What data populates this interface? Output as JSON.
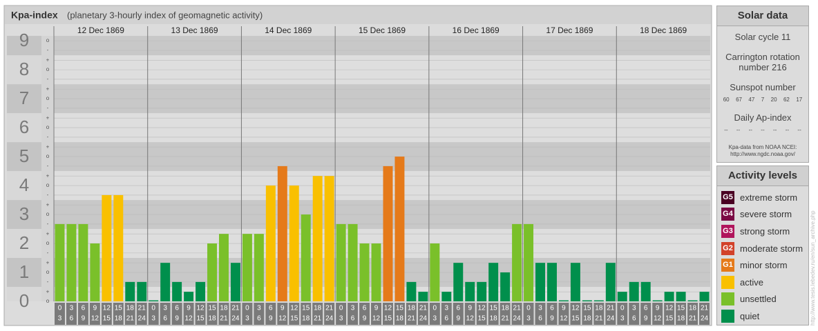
{
  "chart_data": {
    "type": "bar",
    "title": "Kpa-index",
    "subtitle": "(planetary 3-hourly index of geomagnetic activity)",
    "days": [
      "12 Dec 1869",
      "13 Dec 1869",
      "14 Dec 1869",
      "15 Dec 1869",
      "16 Dec 1869",
      "17 Dec 1869",
      "18 Dec 1869"
    ],
    "hours": [
      [
        0,
        3
      ],
      [
        3,
        6
      ],
      [
        6,
        9
      ],
      [
        9,
        12
      ],
      [
        12,
        15
      ],
      [
        15,
        18
      ],
      [
        18,
        21
      ],
      [
        21,
        24
      ]
    ],
    "values": [
      2.67,
      2.67,
      2.67,
      2.0,
      3.67,
      3.67,
      0.67,
      0.67,
      0,
      1.33,
      0.67,
      0.33,
      0.67,
      2.0,
      2.33,
      1.33,
      2.33,
      2.33,
      4.0,
      4.67,
      4.0,
      3.0,
      4.33,
      4.33,
      2.67,
      2.67,
      2.0,
      2.0,
      4.67,
      5.0,
      0.67,
      0.33,
      2.0,
      0.33,
      1.33,
      0.67,
      0.67,
      1.33,
      1.0,
      2.67,
      2.67,
      1.33,
      1.33,
      0,
      1.33,
      0,
      0,
      1.33,
      0.33,
      0.67,
      0.67,
      0,
      0.33,
      0.33,
      0,
      0.33
    ],
    "colors": [
      "#7ac02a",
      "#7ac02a",
      "#7ac02a",
      "#7ac02a",
      "#f9c000",
      "#f9c000",
      "#008f4c",
      "#008f4c",
      "#008f4c",
      "#008f4c",
      "#008f4c",
      "#008f4c",
      "#008f4c",
      "#7ac02a",
      "#7ac02a",
      "#008f4c",
      "#7ac02a",
      "#7ac02a",
      "#f9c000",
      "#e57a1a",
      "#f9c000",
      "#7ac02a",
      "#f9c000",
      "#f9c000",
      "#7ac02a",
      "#7ac02a",
      "#7ac02a",
      "#7ac02a",
      "#e57a1a",
      "#e57a1a",
      "#008f4c",
      "#008f4c",
      "#7ac02a",
      "#008f4c",
      "#008f4c",
      "#008f4c",
      "#008f4c",
      "#008f4c",
      "#008f4c",
      "#7ac02a",
      "#7ac02a",
      "#008f4c",
      "#008f4c",
      "#008f4c",
      "#008f4c",
      "#008f4c",
      "#008f4c",
      "#008f4c",
      "#008f4c",
      "#008f4c",
      "#008f4c",
      "#008f4c",
      "#008f4c",
      "#008f4c",
      "#008f4c",
      "#008f4c"
    ],
    "ylim": [
      0,
      9.17
    ],
    "yticks": [
      0,
      1,
      2,
      3,
      4,
      5,
      6,
      7,
      8,
      9
    ],
    "minor_ticks": [
      {
        "value": 0,
        "label": "o"
      },
      {
        "value": 0.33,
        "label": "+"
      },
      {
        "value": 0.67,
        "label": "-"
      },
      {
        "value": 1,
        "label": "o"
      },
      {
        "value": 1.33,
        "label": "+"
      },
      {
        "value": 1.67,
        "label": "-"
      },
      {
        "value": 2,
        "label": "o"
      },
      {
        "value": 2.33,
        "label": "+"
      },
      {
        "value": 2.67,
        "label": "-"
      },
      {
        "value": 3,
        "label": "o"
      },
      {
        "value": 3.33,
        "label": "+"
      },
      {
        "value": 3.67,
        "label": "-"
      },
      {
        "value": 4,
        "label": "o"
      },
      {
        "value": 4.33,
        "label": "+"
      },
      {
        "value": 4.67,
        "label": "-"
      },
      {
        "value": 5,
        "label": "o"
      },
      {
        "value": 5.33,
        "label": "+"
      },
      {
        "value": 5.67,
        "label": "-"
      },
      {
        "value": 6,
        "label": "o"
      },
      {
        "value": 6.33,
        "label": "+"
      },
      {
        "value": 6.67,
        "label": "-"
      },
      {
        "value": 7,
        "label": "o"
      },
      {
        "value": 7.33,
        "label": "+"
      },
      {
        "value": 7.67,
        "label": "-"
      },
      {
        "value": 8,
        "label": "o"
      },
      {
        "value": 8.33,
        "label": "+"
      },
      {
        "value": 8.67,
        "label": "-"
      },
      {
        "value": 9,
        "label": "o"
      }
    ]
  },
  "solar_data": {
    "title": "Solar data",
    "cycle": "Solar cycle 11",
    "carrington": "Carrington rotation number 216",
    "sunspot_title": "Sunspot number",
    "sunspots": [
      60,
      67,
      47,
      7,
      20,
      62,
      17
    ],
    "ap_title": "Daily Ap-index",
    "ap": [
      "--",
      "--",
      "--",
      "--",
      "--",
      "--",
      "--"
    ],
    "note": "Kpa-data from NOAA NCEI: http://www.ngdc.noaa.gov/"
  },
  "activity_levels": {
    "title": "Activity levels",
    "items": [
      {
        "badge": "G5",
        "label": "extreme storm",
        "color": "#4a0022"
      },
      {
        "badge": "G4",
        "label": "severe storm",
        "color": "#7a0a44"
      },
      {
        "badge": "G3",
        "label": "strong storm",
        "color": "#b0155c"
      },
      {
        "badge": "G2",
        "label": "moderate storm",
        "color": "#d2422a"
      },
      {
        "badge": "G1",
        "label": "minor storm",
        "color": "#e57a1a"
      },
      {
        "badge": "",
        "label": "active",
        "color": "#f9c000"
      },
      {
        "badge": "",
        "label": "unsettled",
        "color": "#7ac02a"
      },
      {
        "badge": "",
        "label": "quiet",
        "color": "#008f4c"
      }
    ]
  },
  "source_url": "http://www.tesis.lebedev.ru/en/sun_archive.php"
}
